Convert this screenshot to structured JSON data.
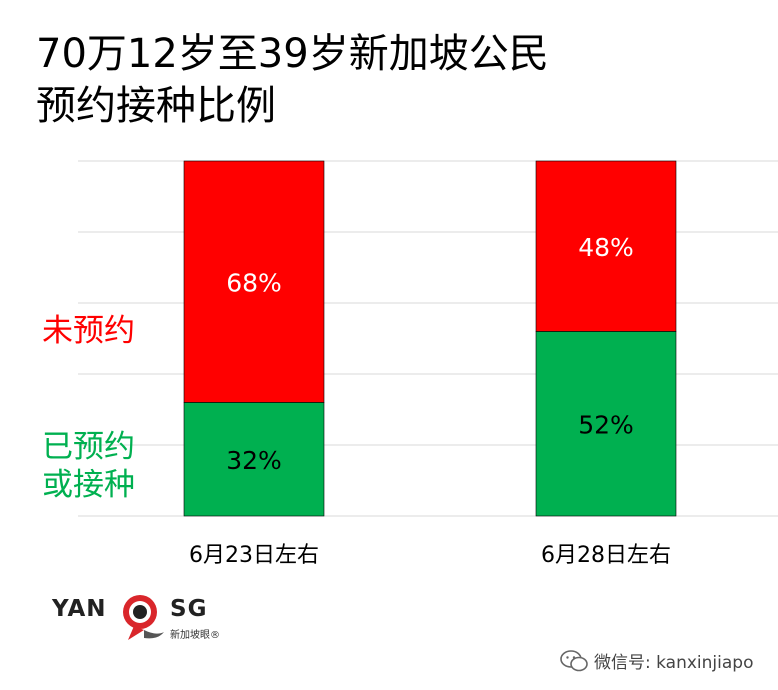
{
  "title_lines": [
    "70万12岁至39岁新加坡公民",
    "预约接种比例"
  ],
  "legend": {
    "not_booked": [
      "未预约"
    ],
    "booked": [
      "已预约",
      "或接种"
    ]
  },
  "colors": {
    "not_booked": "#ff0000",
    "booked": "#00b050"
  },
  "chart_data": {
    "type": "bar",
    "stacked": true,
    "unit": "%",
    "title": "70万12岁至39岁新加坡公民预约接种比例",
    "categories": [
      "6月23日左右",
      "6月28日左右"
    ],
    "series": [
      {
        "name": "已预约或接种",
        "values": [
          32,
          52
        ],
        "labels": [
          "32%",
          "52%"
        ]
      },
      {
        "name": "未预约",
        "values": [
          68,
          48
        ],
        "labels": [
          "68%",
          "48%"
        ]
      }
    ],
    "ylim": [
      0,
      100
    ],
    "grid": true
  },
  "logo": {
    "left": "YAN",
    "right": "SG",
    "sub": "新加坡眼®"
  },
  "watermark": "微信号: kanxinjiapo"
}
